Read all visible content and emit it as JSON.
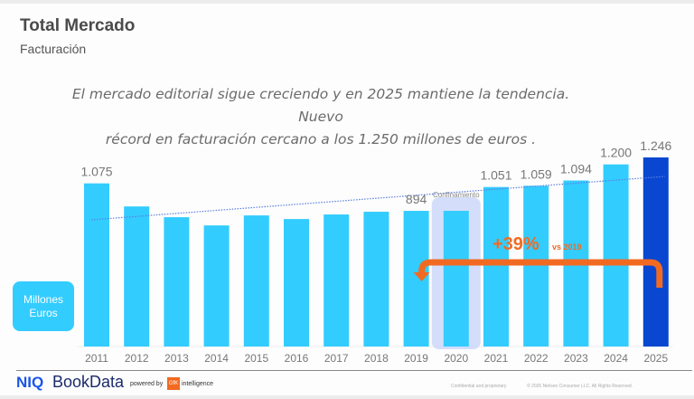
{
  "header": {
    "title": "Total Mercado",
    "subtitle": "Facturación"
  },
  "headline": {
    "line1": "El mercado editorial sigue creciendo y en 2025 mantiene la tendencia. Nuevo",
    "line2": "récord en facturación cercano a los 1.250 millones de euros ."
  },
  "unit_label": {
    "line1": "Millones",
    "line2": "Euros"
  },
  "chart_data": {
    "type": "bar",
    "title": "Total Mercado - Facturación",
    "xlabel": "",
    "ylabel": "Millones Euros",
    "ylim": [
      0,
      1300
    ],
    "grid": false,
    "categories": [
      "2011",
      "2012",
      "2013",
      "2014",
      "2015",
      "2016",
      "2017",
      "2018",
      "2019",
      "2020",
      "2021",
      "2022",
      "2023",
      "2024",
      "2025"
    ],
    "values": [
      1075,
      923,
      852,
      798,
      864,
      840,
      870,
      888,
      894,
      894,
      1051,
      1059,
      1094,
      1200,
      1246
    ],
    "data_labels": [
      "1.075",
      "",
      "",
      "",
      "",
      "",
      "",
      "",
      "894",
      "",
      "1.051",
      "1.059",
      "1.094",
      "1.200",
      "1.246"
    ],
    "bar_color": "#33ccff",
    "highlight_color": "#0a47d1",
    "highlight_category": "2025",
    "trendline": {
      "style": "dotted",
      "color": "#5b7fe0",
      "from_category": "2011",
      "to_category": "2025"
    },
    "annotations": [
      {
        "text": "Confinamiento",
        "category": "2020",
        "highlight_color": "#c5d3f8"
      },
      {
        "text": "+39%",
        "subtext": "vs 2019",
        "color": "#f26a21",
        "arrow_from": "2025",
        "arrow_to": "2019"
      }
    ]
  },
  "footer": {
    "brand_niq": "NIQ",
    "brand_bookdata": "BookData",
    "powered_by": "powered by",
    "gfk": "GfK",
    "intelligence": "intelligence",
    "confidential": "Confidential and proprietary",
    "copyright": "© 2026 Nielsen Consumer LLC. All Rights Reserved."
  }
}
